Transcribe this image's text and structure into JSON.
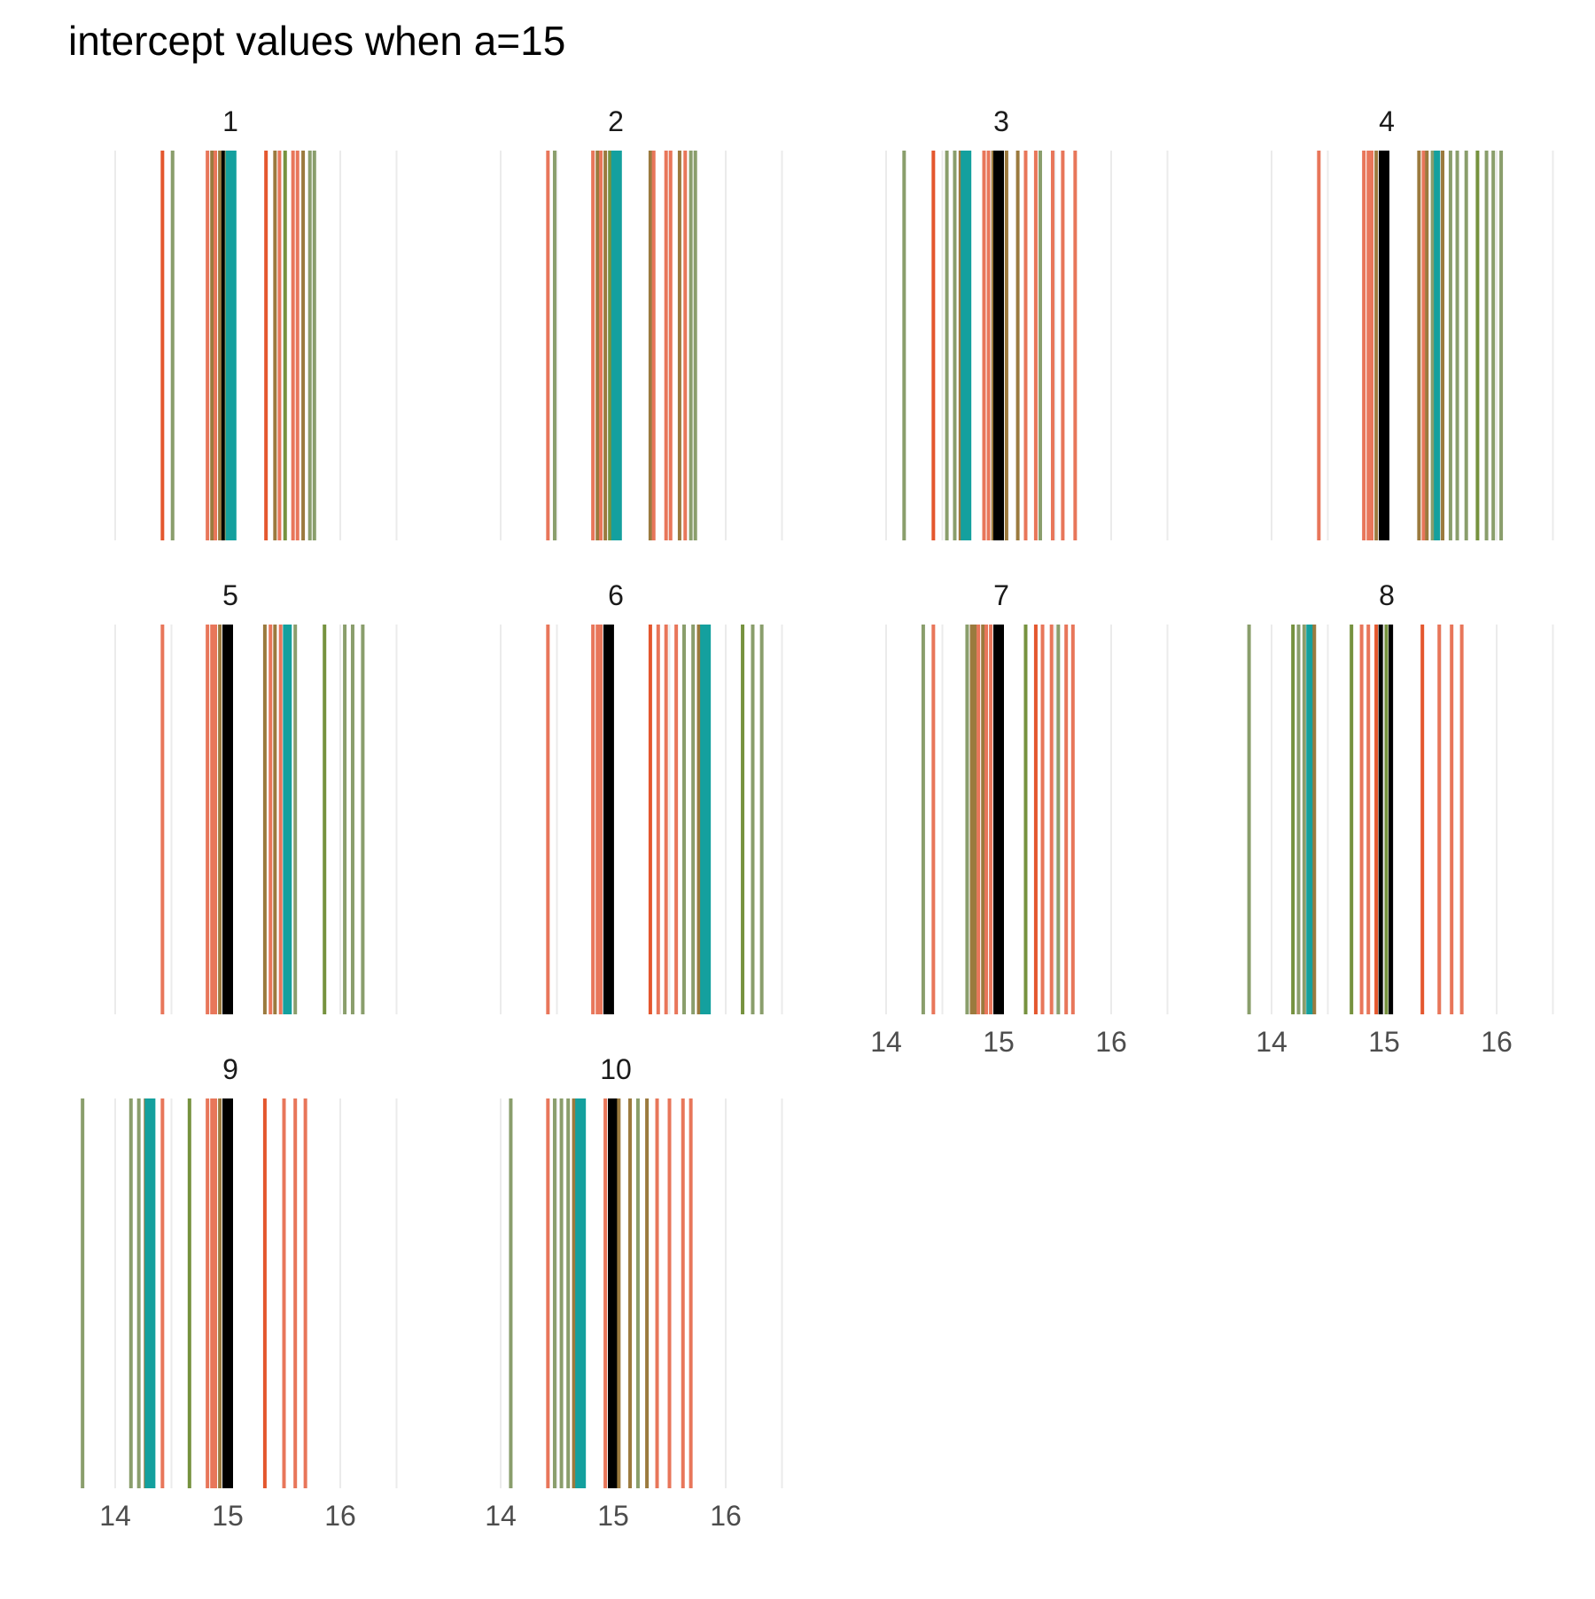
{
  "title": "intercept values when a=15",
  "colors": {
    "red": "#e4572e",
    "salmon": "#e8765a",
    "green": "#76923f",
    "sage": "#8a9e6c",
    "olive": "#9b7a3e",
    "teal": "#14a09e",
    "black": "#000000",
    "grid": "#ebebeb",
    "tick_text": "#4d4d4d",
    "strip_text": "#1a1a1a"
  },
  "chart_data": {
    "type": "vline",
    "x_ticks": [
      14,
      15,
      16
    ],
    "xlim": [
      13.6,
      16.5
    ],
    "grid": true,
    "panels": [
      {
        "label": "1",
        "lines": [
          {
            "x": 14.42,
            "c": "red"
          },
          {
            "x": 14.51,
            "c": "sage"
          },
          {
            "x": 14.82,
            "c": "salmon"
          },
          {
            "x": 14.86,
            "c": "olive"
          },
          {
            "x": 14.89,
            "c": "salmon"
          },
          {
            "x": 14.93,
            "c": "olive"
          },
          {
            "x": 14.96,
            "c": "black"
          },
          {
            "x": 14.99,
            "c": "sage"
          },
          {
            "x": 15.03,
            "c": "teal",
            "w": 12
          },
          {
            "x": 15.34,
            "c": "red"
          },
          {
            "x": 15.42,
            "c": "olive"
          },
          {
            "x": 15.46,
            "c": "salmon"
          },
          {
            "x": 15.51,
            "c": "green"
          },
          {
            "x": 15.58,
            "c": "salmon"
          },
          {
            "x": 15.62,
            "c": "salmon"
          },
          {
            "x": 15.67,
            "c": "olive"
          },
          {
            "x": 15.73,
            "c": "sage"
          },
          {
            "x": 15.77,
            "c": "sage"
          }
        ]
      },
      {
        "label": "2",
        "lines": [
          {
            "x": 14.42,
            "c": "salmon"
          },
          {
            "x": 14.48,
            "c": "sage"
          },
          {
            "x": 14.82,
            "c": "salmon"
          },
          {
            "x": 14.86,
            "c": "olive"
          },
          {
            "x": 14.89,
            "c": "salmon"
          },
          {
            "x": 14.93,
            "c": "olive"
          },
          {
            "x": 14.97,
            "c": "green"
          },
          {
            "x": 15.03,
            "c": "teal",
            "w": 12
          },
          {
            "x": 15.33,
            "c": "olive"
          },
          {
            "x": 15.36,
            "c": "salmon"
          },
          {
            "x": 15.47,
            "c": "salmon"
          },
          {
            "x": 15.51,
            "c": "salmon"
          },
          {
            "x": 15.59,
            "c": "olive"
          },
          {
            "x": 15.64,
            "c": "salmon"
          },
          {
            "x": 15.69,
            "c": "sage"
          },
          {
            "x": 15.73,
            "c": "sage"
          }
        ]
      },
      {
        "label": "3",
        "lines": [
          {
            "x": 14.16,
            "c": "sage"
          },
          {
            "x": 14.42,
            "c": "red"
          },
          {
            "x": 14.54,
            "c": "sage"
          },
          {
            "x": 14.61,
            "c": "sage"
          },
          {
            "x": 14.66,
            "c": "olive"
          },
          {
            "x": 14.71,
            "c": "teal",
            "w": 12
          },
          {
            "x": 14.87,
            "c": "salmon"
          },
          {
            "x": 14.91,
            "c": "salmon"
          },
          {
            "x": 14.95,
            "c": "olive"
          },
          {
            "x": 15.0,
            "c": "black",
            "w": 12
          },
          {
            "x": 15.07,
            "c": "olive"
          },
          {
            "x": 15.17,
            "c": "olive"
          },
          {
            "x": 15.24,
            "c": "salmon"
          },
          {
            "x": 15.33,
            "c": "salmon"
          },
          {
            "x": 15.37,
            "c": "sage"
          },
          {
            "x": 15.48,
            "c": "salmon"
          },
          {
            "x": 15.57,
            "c": "salmon"
          },
          {
            "x": 15.68,
            "c": "salmon"
          }
        ]
      },
      {
        "label": "4",
        "lines": [
          {
            "x": 14.42,
            "c": "salmon"
          },
          {
            "x": 14.82,
            "c": "salmon"
          },
          {
            "x": 14.86,
            "c": "salmon"
          },
          {
            "x": 14.89,
            "c": "salmon"
          },
          {
            "x": 14.93,
            "c": "olive"
          },
          {
            "x": 15.0,
            "c": "black",
            "w": 12
          },
          {
            "x": 15.31,
            "c": "olive"
          },
          {
            "x": 15.35,
            "c": "salmon"
          },
          {
            "x": 15.38,
            "c": "olive"
          },
          {
            "x": 15.43,
            "c": "sage"
          },
          {
            "x": 15.47,
            "c": "teal",
            "w": 7
          },
          {
            "x": 15.52,
            "c": "olive"
          },
          {
            "x": 15.59,
            "c": "sage"
          },
          {
            "x": 15.65,
            "c": "sage"
          },
          {
            "x": 15.73,
            "c": "sage"
          },
          {
            "x": 15.83,
            "c": "green"
          },
          {
            "x": 15.91,
            "c": "sage"
          },
          {
            "x": 15.97,
            "c": "sage"
          },
          {
            "x": 16.04,
            "c": "sage"
          }
        ]
      },
      {
        "label": "5",
        "lines": [
          {
            "x": 14.42,
            "c": "salmon"
          },
          {
            "x": 14.82,
            "c": "salmon"
          },
          {
            "x": 14.86,
            "c": "salmon"
          },
          {
            "x": 14.89,
            "c": "salmon"
          },
          {
            "x": 14.93,
            "c": "olive"
          },
          {
            "x": 15.0,
            "c": "black",
            "w": 12
          },
          {
            "x": 15.33,
            "c": "olive"
          },
          {
            "x": 15.38,
            "c": "salmon"
          },
          {
            "x": 15.42,
            "c": "olive"
          },
          {
            "x": 15.47,
            "c": "salmon"
          },
          {
            "x": 15.53,
            "c": "teal",
            "w": 10
          },
          {
            "x": 15.6,
            "c": "sage"
          },
          {
            "x": 15.86,
            "c": "green"
          },
          {
            "x": 16.04,
            "c": "sage"
          },
          {
            "x": 16.11,
            "c": "sage"
          },
          {
            "x": 16.2,
            "c": "sage"
          }
        ]
      },
      {
        "label": "6",
        "lines": [
          {
            "x": 14.42,
            "c": "salmon"
          },
          {
            "x": 14.82,
            "c": "salmon"
          },
          {
            "x": 14.86,
            "c": "salmon"
          },
          {
            "x": 14.89,
            "c": "salmon"
          },
          {
            "x": 14.96,
            "c": "black",
            "w": 12
          },
          {
            "x": 15.33,
            "c": "red"
          },
          {
            "x": 15.4,
            "c": "salmon"
          },
          {
            "x": 15.47,
            "c": "salmon"
          },
          {
            "x": 15.56,
            "c": "salmon"
          },
          {
            "x": 15.63,
            "c": "sage"
          },
          {
            "x": 15.71,
            "c": "sage"
          },
          {
            "x": 15.76,
            "c": "olive"
          },
          {
            "x": 15.82,
            "c": "teal",
            "w": 12
          },
          {
            "x": 16.15,
            "c": "green"
          },
          {
            "x": 16.24,
            "c": "sage"
          },
          {
            "x": 16.32,
            "c": "sage"
          }
        ]
      },
      {
        "label": "7",
        "lines": [
          {
            "x": 14.33,
            "c": "sage"
          },
          {
            "x": 14.42,
            "c": "salmon"
          },
          {
            "x": 14.72,
            "c": "sage"
          },
          {
            "x": 14.76,
            "c": "olive"
          },
          {
            "x": 14.79,
            "c": "olive"
          },
          {
            "x": 14.82,
            "c": "salmon"
          },
          {
            "x": 14.86,
            "c": "olive"
          },
          {
            "x": 14.89,
            "c": "salmon"
          },
          {
            "x": 14.93,
            "c": "salmon"
          },
          {
            "x": 15.0,
            "c": "black",
            "w": 12
          },
          {
            "x": 15.24,
            "c": "green"
          },
          {
            "x": 15.33,
            "c": "red"
          },
          {
            "x": 15.39,
            "c": "salmon"
          },
          {
            "x": 15.47,
            "c": "salmon"
          },
          {
            "x": 15.53,
            "c": "sage"
          },
          {
            "x": 15.6,
            "c": "salmon"
          },
          {
            "x": 15.66,
            "c": "salmon"
          }
        ]
      },
      {
        "label": "8",
        "lines": [
          {
            "x": 13.8,
            "c": "sage"
          },
          {
            "x": 14.19,
            "c": "green"
          },
          {
            "x": 14.24,
            "c": "sage"
          },
          {
            "x": 14.29,
            "c": "sage"
          },
          {
            "x": 14.34,
            "c": "teal",
            "w": 8
          },
          {
            "x": 14.38,
            "c": "olive"
          },
          {
            "x": 14.71,
            "c": "green"
          },
          {
            "x": 14.8,
            "c": "salmon"
          },
          {
            "x": 14.86,
            "c": "salmon"
          },
          {
            "x": 14.93,
            "c": "red"
          },
          {
            "x": 14.97,
            "c": "black",
            "w": 5
          },
          {
            "x": 15.02,
            "c": "green"
          },
          {
            "x": 15.06,
            "c": "black",
            "w": 5
          },
          {
            "x": 15.34,
            "c": "red"
          },
          {
            "x": 15.49,
            "c": "salmon"
          },
          {
            "x": 15.6,
            "c": "salmon"
          },
          {
            "x": 15.69,
            "c": "salmon"
          }
        ]
      },
      {
        "label": "9",
        "lines": [
          {
            "x": 13.71,
            "c": "sage"
          },
          {
            "x": 14.14,
            "c": "sage"
          },
          {
            "x": 14.21,
            "c": "sage"
          },
          {
            "x": 14.27,
            "c": "olive"
          },
          {
            "x": 14.31,
            "c": "teal",
            "w": 12
          },
          {
            "x": 14.42,
            "c": "salmon"
          },
          {
            "x": 14.66,
            "c": "green"
          },
          {
            "x": 14.82,
            "c": "salmon"
          },
          {
            "x": 14.86,
            "c": "salmon"
          },
          {
            "x": 14.89,
            "c": "salmon"
          },
          {
            "x": 14.93,
            "c": "olive"
          },
          {
            "x": 15.0,
            "c": "black",
            "w": 12
          },
          {
            "x": 15.33,
            "c": "red"
          },
          {
            "x": 15.5,
            "c": "salmon"
          },
          {
            "x": 15.6,
            "c": "salmon"
          },
          {
            "x": 15.69,
            "c": "salmon"
          }
        ]
      },
      {
        "label": "10",
        "lines": [
          {
            "x": 14.09,
            "c": "sage"
          },
          {
            "x": 14.42,
            "c": "salmon"
          },
          {
            "x": 14.48,
            "c": "sage"
          },
          {
            "x": 14.54,
            "c": "sage"
          },
          {
            "x": 14.6,
            "c": "sage"
          },
          {
            "x": 14.65,
            "c": "olive"
          },
          {
            "x": 14.71,
            "c": "teal",
            "w": 12
          },
          {
            "x": 14.93,
            "c": "salmon"
          },
          {
            "x": 14.97,
            "c": "olive"
          },
          {
            "x": 15.0,
            "c": "black",
            "w": 12
          },
          {
            "x": 15.05,
            "c": "olive"
          },
          {
            "x": 15.15,
            "c": "olive"
          },
          {
            "x": 15.22,
            "c": "sage"
          },
          {
            "x": 15.3,
            "c": "olive"
          },
          {
            "x": 15.39,
            "c": "salmon"
          },
          {
            "x": 15.5,
            "c": "salmon"
          },
          {
            "x": 15.62,
            "c": "salmon"
          },
          {
            "x": 15.69,
            "c": "salmon"
          }
        ]
      }
    ]
  }
}
